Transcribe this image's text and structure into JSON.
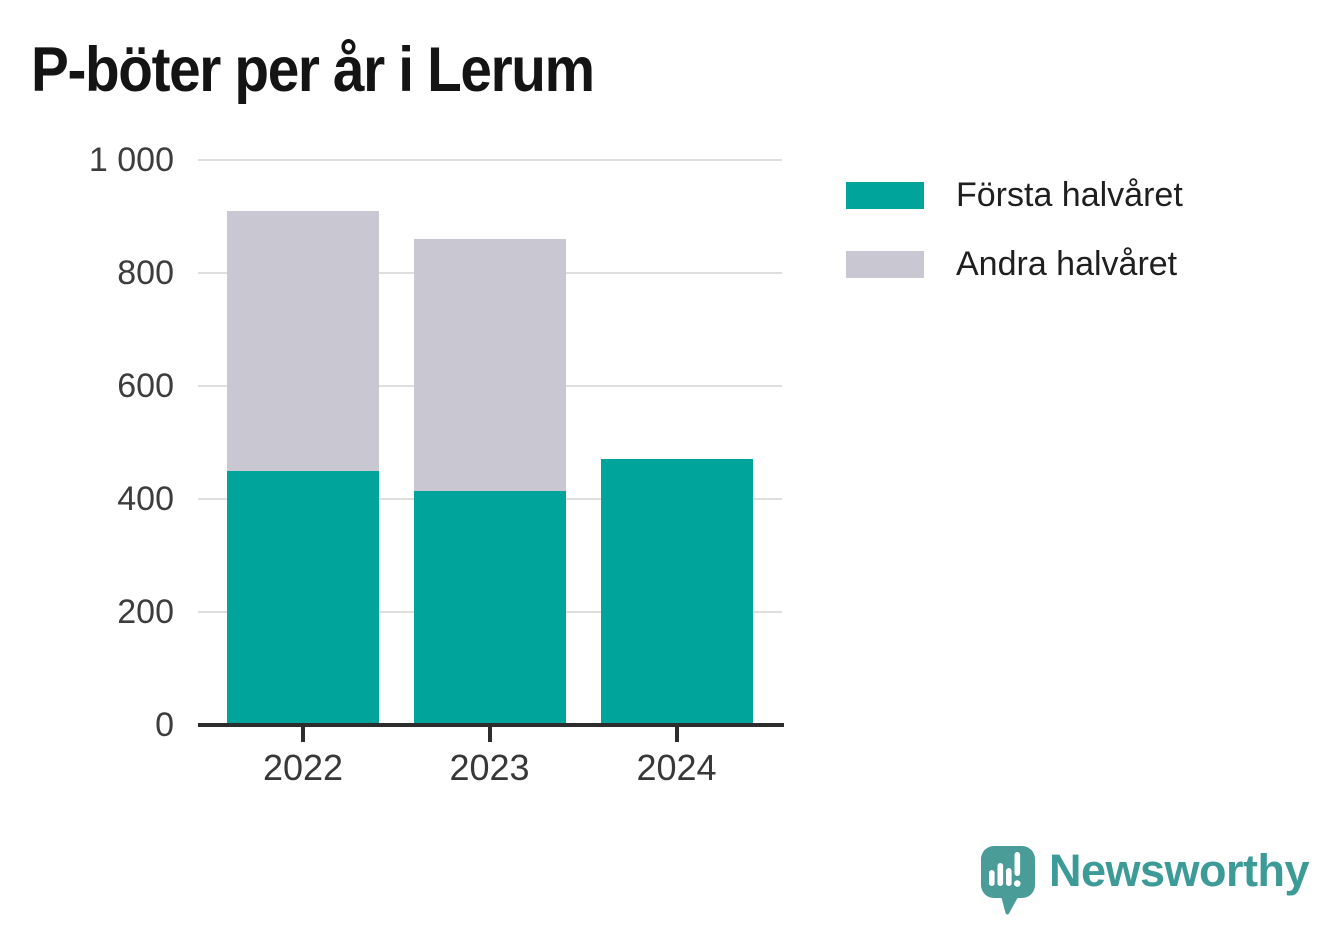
{
  "chart_data": {
    "type": "bar",
    "stacked": true,
    "title": "P-böter per år i Lerum",
    "categories": [
      "2022",
      "2023",
      "2024"
    ],
    "series": [
      {
        "name": "Första halvåret",
        "color": "#00a49a",
        "values": [
          450,
          415,
          470
        ]
      },
      {
        "name": "Andra halvåret",
        "color": "#c9c7d1",
        "values": [
          460,
          445,
          0
        ]
      }
    ],
    "ylim": [
      0,
      1000
    ],
    "yticks": [
      0,
      200,
      400,
      600,
      800,
      1000
    ],
    "ytick_labels": [
      "0",
      "200",
      "400",
      "600",
      "800",
      "1 000"
    ],
    "xlabel": "",
    "ylabel": "",
    "grid": "horizontal-gridlines",
    "legend_position": "top-right"
  },
  "legend": {
    "items": [
      {
        "label": "Första halvåret",
        "color": "#00a49a"
      },
      {
        "label": "Andra halvåret",
        "color": "#c9c7d1"
      }
    ]
  },
  "branding": {
    "logo_text": "Newsworthy",
    "logo_icon": "speech-bubble-bar-chart-exclamation-icon",
    "icon_color": "#4a9c99",
    "text_color": "#3d9b97"
  },
  "colors": {
    "background": "#ffffff",
    "axis_line": "#2d2d2d",
    "gridline": "#dedede",
    "tick_label": "#3d3d3d",
    "title": "#141414"
  }
}
